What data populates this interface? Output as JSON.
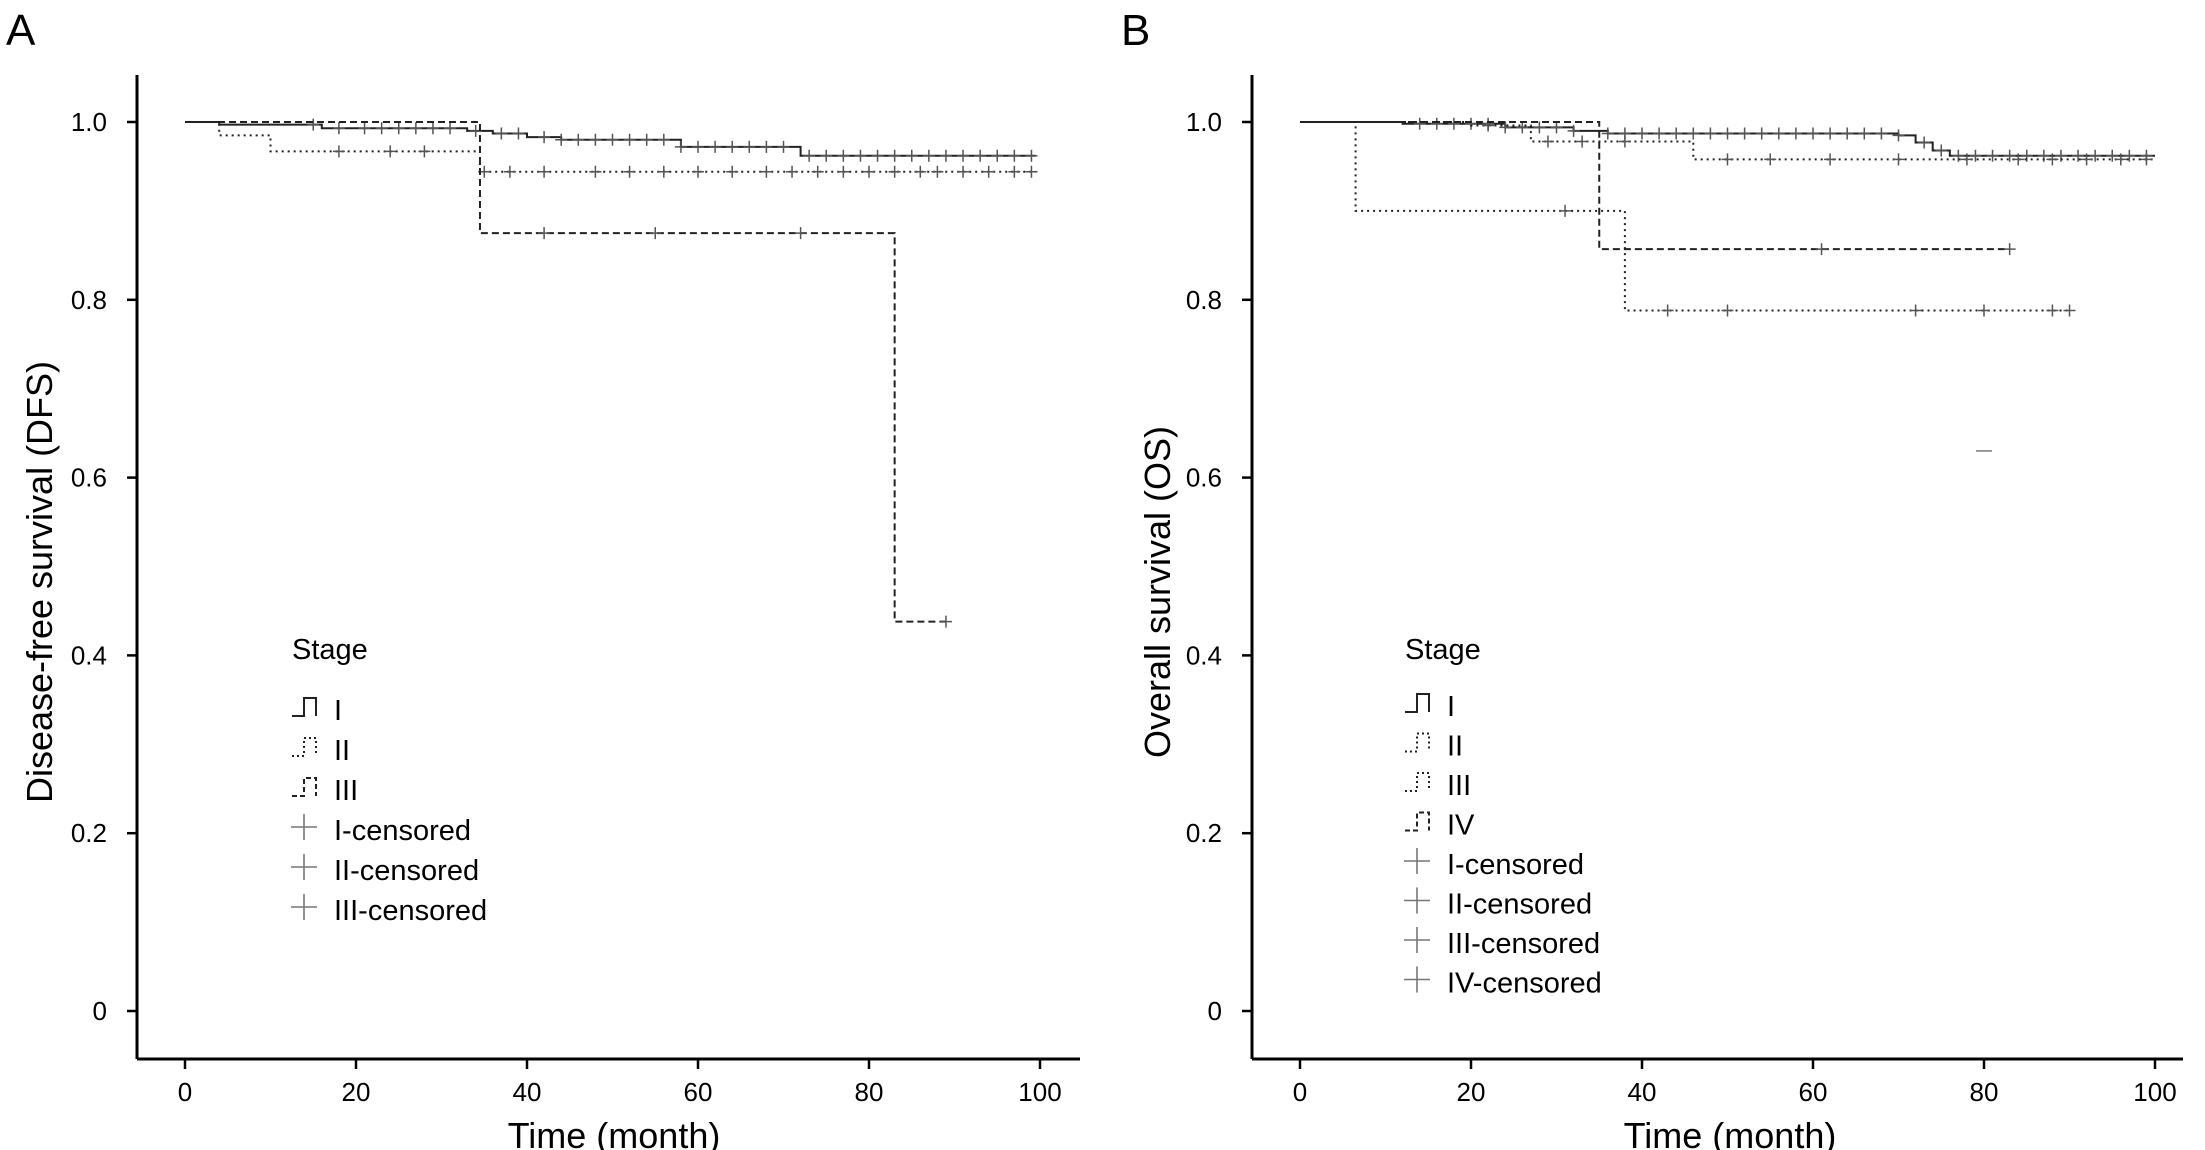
{
  "figure": {
    "panel_letters": [
      "A",
      "B"
    ]
  },
  "chart_data": [
    {
      "type": "line",
      "panel": "A",
      "xlabel": "Time (month)",
      "ylabel": "Disease-free survival (DFS)",
      "xlim": [
        -5,
        105
      ],
      "ylim": [
        -0.05,
        1.05
      ],
      "xticks": [
        0,
        20,
        40,
        60,
        80,
        100
      ],
      "xtick_labels": [
        "0",
        "20",
        "40",
        "60",
        "80",
        "100"
      ],
      "yticks": [
        0,
        0.2,
        0.4,
        0.6,
        0.8,
        1.0
      ],
      "ytick_labels": [
        "0",
        "0.2",
        "0.4",
        "0.6",
        "0.8",
        "1.0"
      ],
      "legend": {
        "title": "Stage",
        "placement": "lower-left",
        "entries": [
          "I",
          "II",
          "III",
          "I-censored",
          "II-censored",
          "III-censored"
        ]
      },
      "series": [
        {
          "name": "I",
          "style": "solid",
          "color": "#222222",
          "steps": [
            [
              0,
              1.0
            ],
            [
              4,
              0.997
            ],
            [
              16,
              0.993
            ],
            [
              33,
              0.99
            ],
            [
              36,
              0.987
            ],
            [
              40,
              0.983
            ],
            [
              44,
              0.98
            ],
            [
              58,
              0.972
            ],
            [
              72,
              0.962
            ],
            [
              99.5,
              0.962
            ]
          ],
          "censored": [
            15,
            18,
            21,
            23,
            25,
            27,
            29,
            31,
            34,
            37,
            39,
            42,
            44,
            46,
            48,
            50,
            52,
            54,
            56,
            58,
            60,
            62,
            64,
            66,
            68,
            70,
            73,
            75,
            77,
            79,
            81,
            83,
            85,
            87,
            89,
            91,
            93,
            95,
            97,
            99
          ]
        },
        {
          "name": "II",
          "style": "dotted",
          "color": "#222222",
          "steps": [
            [
              0,
              1.0
            ],
            [
              4,
              0.985
            ],
            [
              10,
              0.967
            ],
            [
              34.5,
              0.944
            ],
            [
              99.5,
              0.944
            ]
          ],
          "censored": [
            18,
            24,
            28,
            35,
            38,
            42,
            48,
            52,
            56,
            60,
            64,
            68,
            71,
            74,
            77,
            80,
            83,
            86,
            88,
            91,
            94,
            97,
            99
          ]
        },
        {
          "name": "III",
          "style": "dashed",
          "color": "#222222",
          "steps": [
            [
              0,
              1.0
            ],
            [
              34.5,
              0.875
            ],
            [
              83,
              0.438
            ],
            [
              89,
              0.438
            ]
          ],
          "censored": [
            42,
            55,
            72,
            89
          ]
        }
      ]
    },
    {
      "type": "line",
      "panel": "B",
      "xlabel": "Time (month)",
      "ylabel": "Overall survival (OS)",
      "xlim": [
        -5,
        105
      ],
      "ylim": [
        -0.05,
        1.05
      ],
      "xticks": [
        0,
        20,
        40,
        60,
        80,
        100
      ],
      "xtick_labels": [
        "0",
        "20",
        "40",
        "60",
        "80",
        "100"
      ],
      "yticks": [
        0,
        0.2,
        0.4,
        0.6,
        0.8,
        1.0
      ],
      "ytick_labels": [
        "0",
        "0.2",
        "0.4",
        "0.6",
        "0.8",
        "1.0"
      ],
      "legend": {
        "title": "Stage",
        "placement": "lower-left",
        "entries": [
          "I",
          "II",
          "III",
          "IV",
          "I-censored",
          "II-censored",
          "III-censored",
          "IV-censored"
        ]
      },
      "series": [
        {
          "name": "I",
          "style": "solid",
          "color": "#222222",
          "steps": [
            [
              0,
              1.0
            ],
            [
              12,
              0.998
            ],
            [
              24,
              0.994
            ],
            [
              32,
              0.99
            ],
            [
              36,
              0.987
            ],
            [
              70,
              0.985
            ],
            [
              72,
              0.977
            ],
            [
              74,
              0.968
            ],
            [
              76,
              0.962
            ],
            [
              100,
              0.962
            ]
          ],
          "censored": [
            14,
            16,
            18,
            20,
            22,
            24,
            26,
            28,
            30,
            32,
            36,
            38,
            40,
            42,
            44,
            46,
            48,
            50,
            52,
            54,
            56,
            58,
            60,
            62,
            64,
            66,
            68,
            70,
            73,
            75,
            77,
            79,
            81,
            83,
            85,
            87,
            89,
            91,
            93,
            95,
            97,
            99
          ]
        },
        {
          "name": "II",
          "style": "dotted",
          "color": "#222222",
          "steps": [
            [
              0,
              1.0
            ],
            [
              20,
              0.996
            ],
            [
              27,
              0.978
            ],
            [
              46,
              0.958
            ],
            [
              100,
              0.958
            ]
          ],
          "censored": [
            22,
            29,
            33,
            38,
            50,
            55,
            62,
            70,
            78,
            84,
            88,
            92,
            96,
            99
          ]
        },
        {
          "name": "III",
          "style": "dotted",
          "color": "#222222",
          "steps": [
            [
              0,
              1.0
            ],
            [
              6.5,
              0.9
            ],
            [
              38,
              0.788
            ],
            [
              90,
              0.788
            ]
          ],
          "censored": [
            31,
            43,
            50,
            72,
            80,
            88,
            90
          ]
        },
        {
          "name": "IV",
          "style": "dashed",
          "color": "#222222",
          "steps": [
            [
              0,
              1.0
            ],
            [
              35,
              0.857
            ],
            [
              83,
              0.857
            ]
          ],
          "censored": [
            61,
            83
          ]
        }
      ],
      "stray_marks": [
        [
          80,
          0.63
        ]
      ]
    }
  ]
}
